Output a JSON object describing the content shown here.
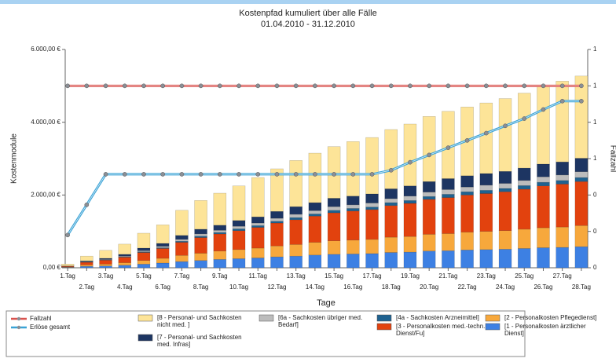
{
  "chart_data": {
    "type": "bar",
    "stacked": true,
    "title": "Kostenpfad kumuliert über alle Fälle",
    "subtitle": "01.04.2010 - 31.12.2010",
    "x_label": "Tage",
    "y_label": "Kostenmodule",
    "y2_label": "Fallzahl",
    "categories": [
      "1.Tag",
      "2.Tag",
      "3.Tag",
      "4.Tag",
      "5.Tag",
      "6.Tag",
      "7.Tag",
      "8.Tag",
      "9.Tag",
      "10.Tag",
      "11.Tag",
      "12.Tag",
      "13.Tag",
      "14.Tag",
      "15.Tag",
      "16.Tag",
      "17.Tag",
      "18.Tag",
      "19.Tag",
      "20.Tag",
      "21.Tag",
      "22.Tag",
      "23.Tag",
      "24.Tag",
      "25.Tag",
      "26.Tag",
      "27.Tag",
      "28.Tag"
    ],
    "ylim": [
      0,
      6000
    ],
    "yticks": [
      {
        "value": 0,
        "label": "0,00 €"
      },
      {
        "value": 2000,
        "label": "2.000,00 €"
      },
      {
        "value": 4000,
        "label": "4.000,00 €"
      },
      {
        "value": 6000,
        "label": "6.000,00 €"
      }
    ],
    "y2lim": [
      0,
      1.2
    ],
    "y2ticks": [
      {
        "value": 0,
        "label": "0"
      },
      {
        "value": 0.2,
        "label": "0"
      },
      {
        "value": 0.4,
        "label": "0"
      },
      {
        "value": 0.6,
        "label": "1"
      },
      {
        "value": 0.8,
        "label": "1"
      },
      {
        "value": 1,
        "label": "1"
      },
      {
        "value": 1.2,
        "label": "1"
      }
    ],
    "grid": false,
    "legend": "bottom",
    "series": [
      {
        "name": "[1 - Personalkosten ärztlicher Dienst]",
        "type": "bar",
        "color": "#3d80e3",
        "values": [
          10,
          40,
          50,
          70,
          100,
          130,
          170,
          200,
          230,
          250,
          270,
          300,
          320,
          350,
          370,
          380,
          390,
          420,
          430,
          460,
          470,
          490,
          500,
          510,
          530,
          550,
          560,
          580
        ]
      },
      {
        "name": "[2 - Personalkosten Pflegedienst]",
        "type": "bar",
        "color": "#f7a83c",
        "values": [
          10,
          40,
          50,
          70,
          100,
          130,
          170,
          200,
          230,
          250,
          270,
          300,
          320,
          350,
          370,
          380,
          390,
          420,
          430,
          460,
          470,
          490,
          500,
          510,
          530,
          550,
          560,
          580
        ]
      },
      {
        "name": "[3 - Personalkosten med.-techn. Dienst/Fu]",
        "type": "bar",
        "color": "#e2420e",
        "values": [
          20,
          70,
          110,
          150,
          220,
          270,
          360,
          430,
          470,
          520,
          570,
          630,
          680,
          720,
          770,
          800,
          820,
          870,
          910,
          960,
          990,
          1020,
          1040,
          1070,
          1100,
          1150,
          1180,
          1210
        ]
      },
      {
        "name": "[4a - Sachkosten Arzneimittel]",
        "type": "bar",
        "color": "#1f6290",
        "values": [
          0,
          10,
          10,
          10,
          20,
          20,
          30,
          40,
          40,
          50,
          50,
          50,
          60,
          60,
          70,
          70,
          70,
          80,
          80,
          80,
          90,
          90,
          90,
          90,
          100,
          100,
          100,
          110
        ]
      },
      {
        "name": "[6a - Sachkosten übriger med. Bedarf]",
        "type": "bar",
        "color": "#bcbcbc",
        "values": [
          0,
          10,
          10,
          20,
          30,
          40,
          50,
          60,
          60,
          70,
          70,
          80,
          90,
          90,
          100,
          100,
          110,
          110,
          120,
          120,
          130,
          130,
          140,
          140,
          140,
          150,
          150,
          160
        ]
      },
      {
        "name": "[7 - Personal- und Sachkosten med. Infras]",
        "type": "bar",
        "color": "#1d3562",
        "values": [
          10,
          20,
          30,
          50,
          70,
          80,
          110,
          130,
          140,
          160,
          170,
          190,
          210,
          220,
          230,
          240,
          250,
          270,
          280,
          290,
          300,
          310,
          320,
          330,
          340,
          350,
          360,
          370
        ]
      },
      {
        "name": "[8 - Personal- und Sachkosten nicht med. ]",
        "type": "bar",
        "color": "#fde498",
        "values": [
          50,
          130,
          220,
          280,
          410,
          510,
          690,
          790,
          880,
          950,
          1080,
          1170,
          1270,
          1360,
          1420,
          1500,
          1550,
          1630,
          1700,
          1790,
          1850,
          1890,
          1940,
          2000,
          2060,
          2130,
          2220,
          2260
        ]
      },
      {
        "name": "Fallzahl",
        "type": "line",
        "axis": "y2",
        "color": "#d9534f",
        "values": [
          1,
          1,
          1,
          1,
          1,
          1,
          1,
          1,
          1,
          1,
          1,
          1,
          1,
          1,
          1,
          1,
          1,
          1,
          1,
          1,
          1,
          1,
          1,
          1,
          1,
          1,
          1,
          1
        ]
      },
      {
        "name": "Erlöse gesamt",
        "type": "line",
        "color": "#3ba3d6",
        "values": [
          900,
          1730,
          2570,
          2570,
          2570,
          2570,
          2570,
          2570,
          2570,
          2570,
          2570,
          2570,
          2570,
          2570,
          2570,
          2570,
          2570,
          2680,
          2900,
          3100,
          3300,
          3500,
          3700,
          3900,
          4100,
          4350,
          4580,
          4580
        ]
      }
    ]
  }
}
